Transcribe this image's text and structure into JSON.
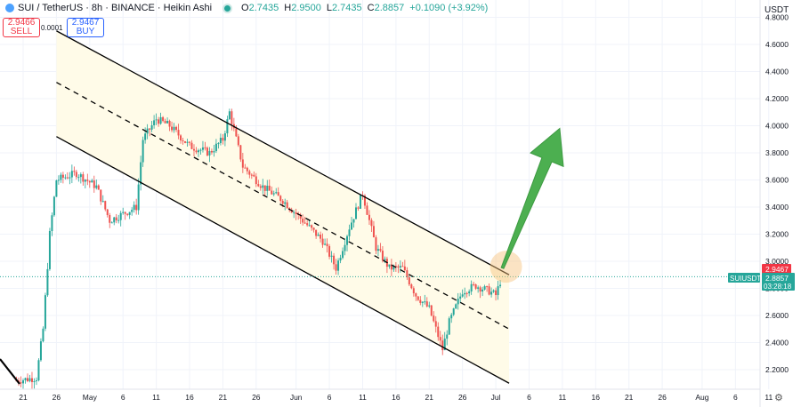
{
  "header": {
    "symbol": "SUI / TetherUS · 8h · BINANCE · Heikin Ashi",
    "open_label": "O",
    "open": "2.7435",
    "high_label": "H",
    "high": "2.9500",
    "low_label": "L",
    "low": "2.7435",
    "close_label": "C",
    "close": "2.8857",
    "change": "+0.1090 (+3.92%)"
  },
  "trade": {
    "sell_price": "2.9466",
    "sell_label": "SELL",
    "spread": "0.0001",
    "buy_price": "2.9467",
    "buy_label": "BUY"
  },
  "axis": {
    "currency": "USDT",
    "price_ticks": [
      "4.8000",
      "4.6000",
      "4.4000",
      "4.2000",
      "4.0000",
      "3.8000",
      "3.6000",
      "3.4000",
      "3.2000",
      "3.0000",
      "2.8000",
      "2.6000",
      "2.4000",
      "2.2000"
    ],
    "date_ticks": [
      "21",
      "26",
      "May",
      "6",
      "11",
      "16",
      "21",
      "26",
      "Jun",
      "6",
      "11",
      "16",
      "21",
      "26",
      "Jul",
      "6",
      "11",
      "16",
      "21",
      "26",
      "Aug",
      "6",
      "11"
    ]
  },
  "last_price": {
    "symbol": "SUIUSDT",
    "ask": "2.9467",
    "price": "2.8857",
    "countdown": "03:28:18"
  },
  "colors": {
    "up": "#26a69a",
    "down": "#ef5350",
    "channel_fill": "#fffbe8",
    "arrow": "#4caf50",
    "highlight": "#f6c27a",
    "buy": "#2962ff",
    "sell": "#f23645"
  },
  "chart_data": {
    "type": "candlestick",
    "title": "SUI / TetherUS · 8h · BINANCE · Heikin Ashi",
    "ylim": [
      2.08,
      4.9
    ],
    "y_scale": "linear",
    "x_ticks": [
      "21",
      "26",
      "May",
      "6",
      "11",
      "16",
      "21",
      "26",
      "Jun",
      "6",
      "11",
      "16",
      "21",
      "26",
      "Jul",
      "6",
      "11",
      "16",
      "21",
      "26",
      "Aug",
      "6",
      "11"
    ],
    "price_path": [
      [
        "Apr 20",
        2.12
      ],
      [
        "Apr 23",
        2.14
      ],
      [
        "Apr 24",
        2.5
      ],
      [
        "Apr 25",
        3.2
      ],
      [
        "Apr 26",
        3.6
      ],
      [
        "Apr 29",
        3.65
      ],
      [
        "May 2",
        3.55
      ],
      [
        "May 4",
        3.3
      ],
      [
        "May 6",
        3.35
      ],
      [
        "May 8",
        3.4
      ],
      [
        "May 9",
        3.9
      ],
      [
        "May 11",
        4.05
      ],
      [
        "May 13",
        4.0
      ],
      [
        "May 16",
        3.85
      ],
      [
        "May 19",
        3.8
      ],
      [
        "May 21",
        3.9
      ],
      [
        "May 22",
        4.1
      ],
      [
        "May 24",
        3.7
      ],
      [
        "May 27",
        3.55
      ],
      [
        "May 30",
        3.45
      ],
      [
        "Jun 2",
        3.3
      ],
      [
        "Jun 5",
        3.15
      ],
      [
        "Jun 7",
        2.95
      ],
      [
        "Jun 9",
        3.25
      ],
      [
        "Jun 11",
        3.5
      ],
      [
        "Jun 13",
        3.1
      ],
      [
        "Jun 15",
        2.95
      ],
      [
        "Jun 17",
        2.95
      ],
      [
        "Jun 19",
        2.75
      ],
      [
        "Jun 21",
        2.65
      ],
      [
        "Jun 23",
        2.35
      ],
      [
        "Jun 24",
        2.55
      ],
      [
        "Jun 26",
        2.78
      ],
      [
        "Jun 28",
        2.82
      ],
      [
        "Jun 30",
        2.78
      ],
      [
        "Jul 1",
        2.75
      ],
      [
        "Jul 2",
        2.9
      ]
    ],
    "channel": {
      "upper": [
        [
          "Apr 26",
          4.7
        ],
        [
          "Jul 3",
          2.9
        ]
      ],
      "middle": [
        [
          "Apr 26",
          4.32
        ],
        [
          "Jul 3",
          2.5
        ]
      ],
      "lower": [
        [
          "Apr 26",
          3.92
        ],
        [
          "Jul 3",
          2.1
        ]
      ]
    },
    "projection_arrow": {
      "from": [
        "Jul 2",
        2.95
      ],
      "to": [
        "Jul 9",
        3.98
      ]
    },
    "last_price": 2.8857
  }
}
